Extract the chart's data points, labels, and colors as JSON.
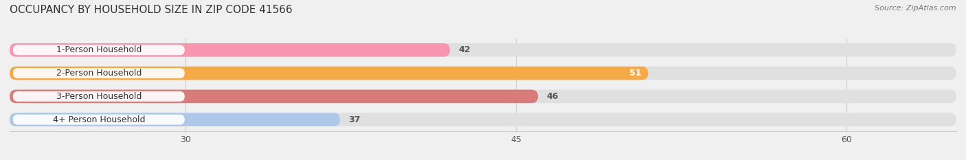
{
  "title": "OCCUPANCY BY HOUSEHOLD SIZE IN ZIP CODE 41566",
  "source": "Source: ZipAtlas.com",
  "categories": [
    "1-Person Household",
    "2-Person Household",
    "3-Person Household",
    "4+ Person Household"
  ],
  "values": [
    42,
    51,
    46,
    37
  ],
  "bar_colors": [
    "#f896b0",
    "#f5a947",
    "#d97b7b",
    "#adc8e8"
  ],
  "background_color": "#f0f0f0",
  "bar_bg_color": "#e0e0e0",
  "label_bg_color": "#ffffff",
  "xlim_min": 22,
  "xlim_max": 65,
  "xticks": [
    30,
    45,
    60
  ],
  "value_colors": [
    "#555555",
    "#ffffff",
    "#555555",
    "#555555"
  ],
  "title_fontsize": 11,
  "source_fontsize": 8,
  "label_fontsize": 9,
  "tick_fontsize": 9,
  "bar_height": 0.58
}
